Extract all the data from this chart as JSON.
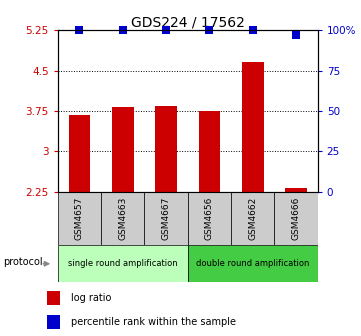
{
  "title": "GDS224 / 17562",
  "samples": [
    "GSM4657",
    "GSM4663",
    "GSM4667",
    "GSM4656",
    "GSM4662",
    "GSM4666"
  ],
  "log_ratios": [
    3.68,
    3.82,
    3.85,
    3.75,
    4.65,
    2.32
  ],
  "percentile_ranks": [
    100,
    100,
    100,
    100,
    100,
    97
  ],
  "y_min": 2.25,
  "y_max": 5.25,
  "y_ticks": [
    2.25,
    3.0,
    3.75,
    4.5,
    5.25
  ],
  "y_tick_labels": [
    "2.25",
    "3",
    "3.75",
    "4.5",
    "5.25"
  ],
  "right_y_ticks": [
    0,
    25,
    50,
    75,
    100
  ],
  "right_y_tick_labels": [
    "0",
    "25",
    "50",
    "75",
    "100%"
  ],
  "bar_color": "#cc0000",
  "dot_color": "#0000cc",
  "protocol_groups": [
    {
      "label": "single round amplification",
      "start": 0,
      "end": 2,
      "color": "#bbffbb"
    },
    {
      "label": "double round amplification",
      "start": 3,
      "end": 5,
      "color": "#44cc44"
    }
  ],
  "legend_items": [
    {
      "label": "log ratio",
      "color": "#cc0000"
    },
    {
      "label": "percentile rank within the sample",
      "color": "#0000cc"
    }
  ],
  "bar_width": 0.5,
  "title_fontsize": 10,
  "tick_fontsize": 7.5,
  "sample_label_fontsize": 6.5,
  "protocol_fontsize": 6,
  "legend_fontsize": 7
}
